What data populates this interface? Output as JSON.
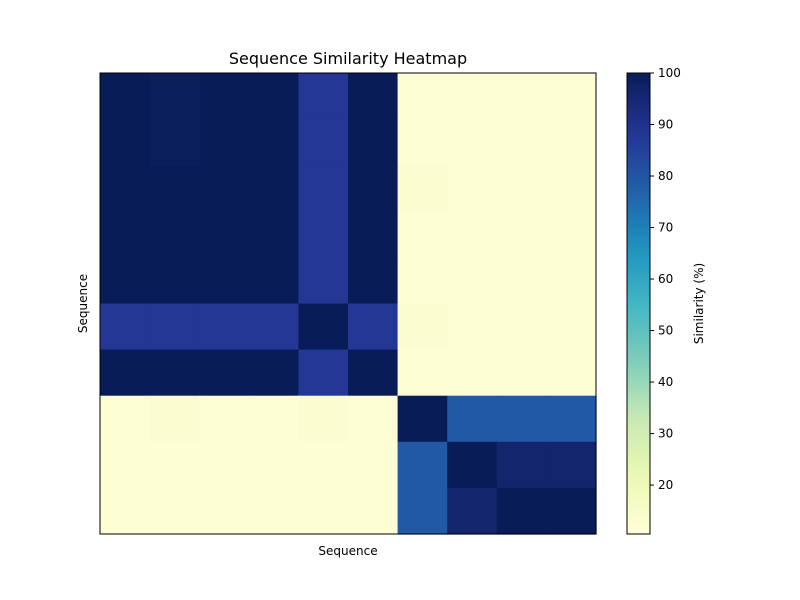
{
  "chart_data": {
    "type": "heatmap",
    "title": "Sequence Similarity Heatmap",
    "xlabel": "Sequence",
    "ylabel": "Sequence",
    "x_ticks_shown": false,
    "y_ticks_shown": false,
    "colormap": "YlGnBu",
    "colorbar": {
      "label": "Similarity (%)",
      "range": [
        10.5,
        100
      ],
      "ticks": [
        20,
        30,
        40,
        50,
        60,
        70,
        80,
        90,
        100
      ]
    },
    "matrix": [
      [
        100,
        99,
        100,
        100,
        88,
        100,
        12,
        12,
        12,
        12
      ],
      [
        100,
        99,
        100,
        100,
        88,
        100,
        12,
        12,
        12,
        12
      ],
      [
        100,
        100,
        100,
        100,
        88,
        100,
        13,
        12,
        12,
        12
      ],
      [
        100,
        100,
        100,
        100,
        88,
        100,
        12,
        12,
        12,
        12
      ],
      [
        100,
        100,
        100,
        100,
        88,
        100,
        12,
        12,
        12,
        12
      ],
      [
        88,
        88,
        88,
        88,
        100,
        88,
        13,
        12,
        12,
        12
      ],
      [
        100,
        100,
        100,
        100,
        88,
        100,
        12,
        12,
        12,
        12
      ],
      [
        12,
        13,
        12,
        12,
        13,
        12,
        100,
        79,
        79,
        79
      ],
      [
        12,
        12,
        12,
        12,
        12,
        12,
        79,
        100,
        96,
        96
      ],
      [
        12,
        12,
        12,
        12,
        12,
        12,
        79,
        96,
        100,
        100
      ]
    ],
    "row_fractions": [
      1,
      1,
      1,
      1,
      1,
      1,
      1,
      1,
      1,
      1
    ],
    "boundaries_note": "blocks"
  }
}
